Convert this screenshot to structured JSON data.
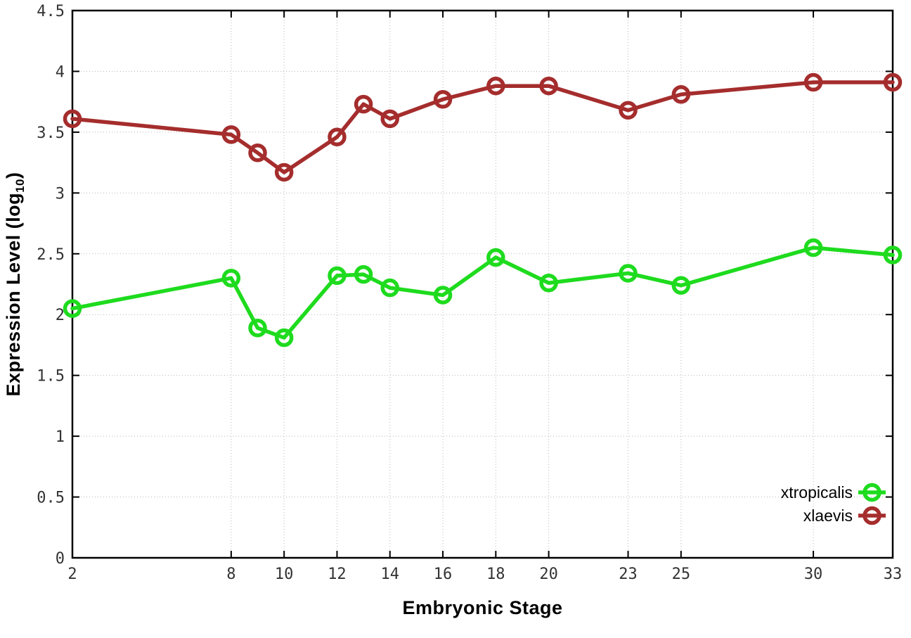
{
  "page": {
    "background": "#ffffff"
  },
  "chart_data": {
    "type": "line",
    "title": "",
    "xlabel": "Embryonic Stage",
    "ylabel": {
      "main": "Expression Level (log",
      "sub": "10",
      "end": ")"
    },
    "x": [
      2,
      8,
      9,
      10,
      12,
      13,
      14,
      16,
      18,
      20,
      23,
      25,
      30,
      33
    ],
    "x_tick_labels": [
      "2",
      "8",
      "10",
      "12",
      "14",
      "16",
      "18",
      "20",
      "23",
      "25",
      "30",
      "33"
    ],
    "x_ticks": [
      2,
      8,
      10,
      12,
      14,
      16,
      18,
      20,
      23,
      25,
      30,
      33
    ],
    "y_ticks": [
      0,
      0.5,
      1,
      1.5,
      2,
      2.5,
      3,
      3.5,
      4,
      4.5
    ],
    "y_tick_labels": [
      "0",
      "0.5",
      "1",
      "1.5",
      "2",
      "2.5",
      "3",
      "3.5",
      "4",
      "4.5"
    ],
    "xlim": [
      2,
      33
    ],
    "ylim": [
      0,
      4.5
    ],
    "grid": true,
    "legend_position": "inside-bottom-right",
    "series": [
      {
        "name": "xtropicalis",
        "color": "#1edb1e",
        "marker": "open-circle",
        "values": [
          2.05,
          2.3,
          1.89,
          1.81,
          2.32,
          2.33,
          2.22,
          2.16,
          2.47,
          2.26,
          2.34,
          2.24,
          2.55,
          2.49
        ]
      },
      {
        "name": "xlaevis",
        "color": "#a52d2d",
        "marker": "open-circle",
        "values": [
          3.61,
          3.48,
          3.33,
          3.17,
          3.46,
          3.73,
          3.61,
          3.77,
          3.88,
          3.88,
          3.68,
          3.81,
          3.91,
          3.91
        ]
      }
    ],
    "colors": {
      "axis": "#000000",
      "grid": "#b8b8b8",
      "tick_text": "#333333"
    }
  }
}
